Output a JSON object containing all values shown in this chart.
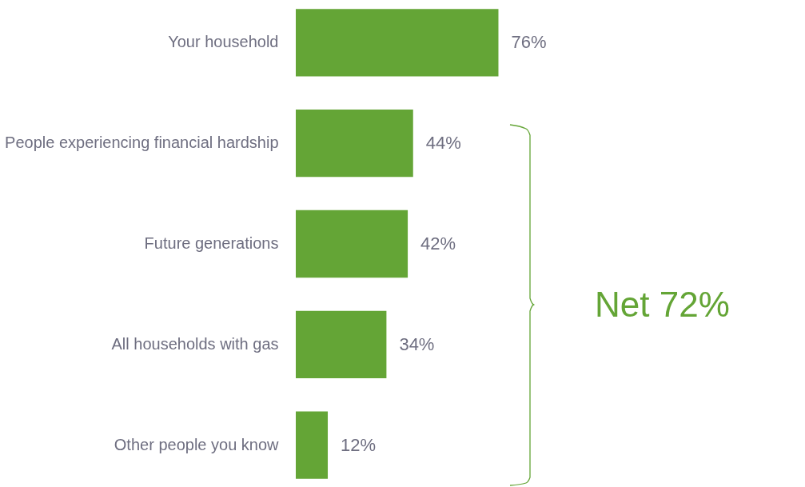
{
  "chart_data": {
    "type": "bar",
    "orientation": "horizontal",
    "categories": [
      "Your household",
      "People experiencing financial hardship",
      "Future generations",
      "All households with gas",
      "Other people you know"
    ],
    "values": [
      76,
      44,
      42,
      34,
      12
    ],
    "value_labels": [
      "76%",
      "44%",
      "42%",
      "34%",
      "12%"
    ],
    "color": "#64a536",
    "annotations": [
      "Net 72%"
    ]
  }
}
